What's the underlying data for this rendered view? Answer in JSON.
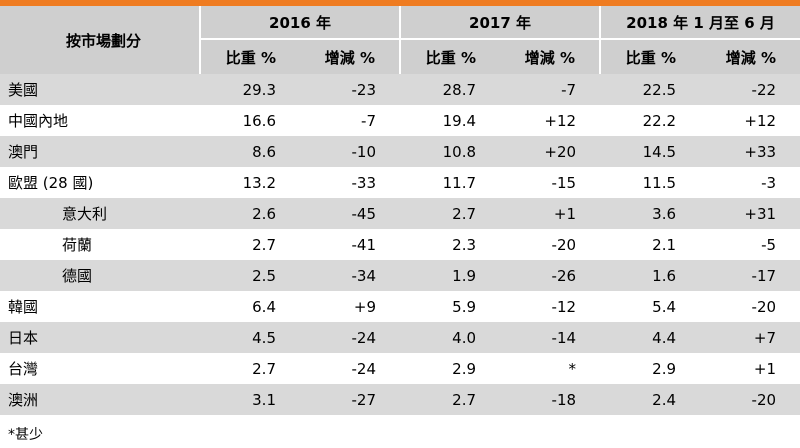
{
  "table": {
    "corner_label": "按市場劃分",
    "year_headers": [
      "2016 年",
      "2017 年",
      "2018 年 1 月至 6 月"
    ],
    "sub_headers": [
      "比重 %",
      "增減 %",
      "比重 %",
      "增減 %",
      "比重 %",
      "增減 %"
    ],
    "rows": [
      {
        "label": "美國",
        "indent": false,
        "values": [
          "29.3",
          "-23",
          "28.7",
          "-7",
          "22.5",
          "-22"
        ]
      },
      {
        "label": "中國內地",
        "indent": false,
        "values": [
          "16.6",
          "-7",
          "19.4",
          "+12",
          "22.2",
          "+12"
        ]
      },
      {
        "label": "澳門",
        "indent": false,
        "values": [
          "8.6",
          "-10",
          "10.8",
          "+20",
          "14.5",
          "+33"
        ]
      },
      {
        "label": "歐盟 (28 國)",
        "indent": false,
        "values": [
          "13.2",
          "-33",
          "11.7",
          "-15",
          "11.5",
          "-3"
        ]
      },
      {
        "label": "意大利",
        "indent": true,
        "values": [
          "2.6",
          "-45",
          "2.7",
          "+1",
          "3.6",
          "+31"
        ]
      },
      {
        "label": "荷蘭",
        "indent": true,
        "values": [
          "2.7",
          "-41",
          "2.3",
          "-20",
          "2.1",
          "-5"
        ]
      },
      {
        "label": "德國",
        "indent": true,
        "values": [
          "2.5",
          "-34",
          "1.9",
          "-26",
          "1.6",
          "-17"
        ]
      },
      {
        "label": "韓國",
        "indent": false,
        "values": [
          "6.4",
          "+9",
          "5.9",
          "-12",
          "5.4",
          "-20"
        ]
      },
      {
        "label": "日本",
        "indent": false,
        "values": [
          "4.5",
          "-24",
          "4.0",
          "-14",
          "4.4",
          "+7"
        ]
      },
      {
        "label": "台灣",
        "indent": false,
        "values": [
          "2.7",
          "-24",
          "2.9",
          "*",
          "2.9",
          "+1"
        ]
      },
      {
        "label": "澳洲",
        "indent": false,
        "values": [
          "3.1",
          "-27",
          "2.7",
          "-18",
          "2.4",
          "-20"
        ]
      }
    ]
  },
  "footnote": "*甚少",
  "colors": {
    "accent_bar": "#ef7c21",
    "header_bg": "#cfcfcf",
    "stripe_bg": "#d9d9d9"
  }
}
